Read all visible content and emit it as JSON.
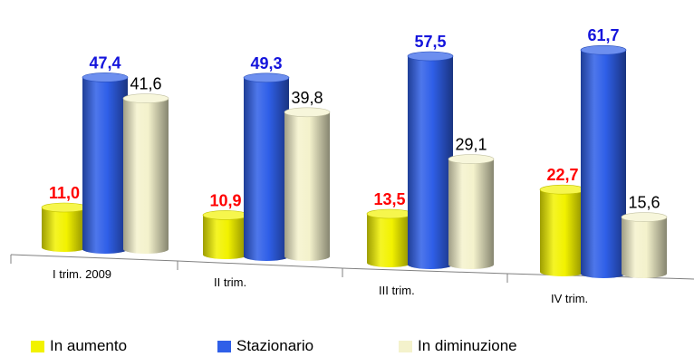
{
  "chart_data": {
    "type": "bar",
    "categories": [
      "I trim. 2009",
      "II trim.",
      "III trim.",
      "IV trim."
    ],
    "series": [
      {
        "name": "In aumento",
        "values": [
          11.0,
          10.9,
          13.5,
          22.7
        ],
        "labels": [
          "11,0",
          "10,9",
          "13,5",
          "22,7"
        ],
        "color": "#f2f200",
        "label_color": "#ff0000"
      },
      {
        "name": "Stazionario",
        "values": [
          47.4,
          49.3,
          57.5,
          61.7
        ],
        "labels": [
          "47,4",
          "49,3",
          "57,5",
          "61,7"
        ],
        "color": "#2f5fe8",
        "label_color": "#1414dc"
      },
      {
        "name": "In diminuzione",
        "values": [
          41.6,
          39.8,
          29.1,
          15.6
        ],
        "labels": [
          "41,6",
          "39,8",
          "29,1",
          "15,6"
        ],
        "color": "#f4f2cc",
        "label_color": "#000000"
      }
    ],
    "grid": false,
    "legend_position": "bottom"
  }
}
